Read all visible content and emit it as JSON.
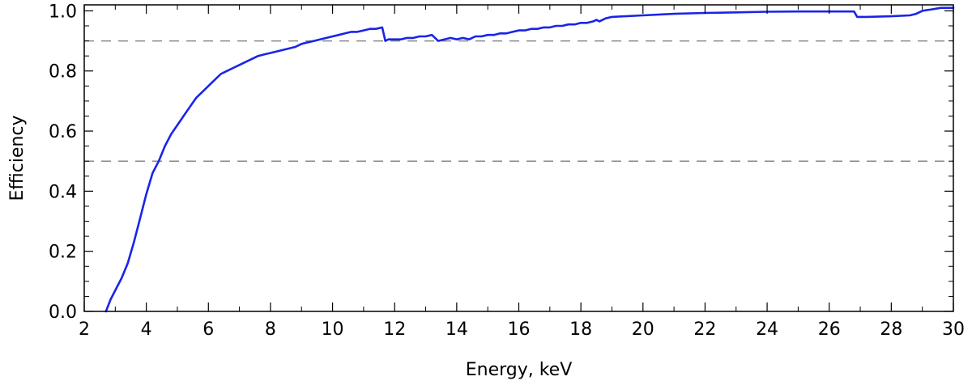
{
  "chart_data": {
    "type": "line",
    "title": "",
    "xlabel": "Energy, keV",
    "ylabel": "Efficiency",
    "xlim": [
      2,
      30
    ],
    "ylim": [
      0,
      1.02
    ],
    "xticks": [
      2,
      4,
      6,
      8,
      10,
      12,
      14,
      16,
      18,
      20,
      22,
      24,
      26,
      28,
      30
    ],
    "xtick_labels": [
      "2",
      "4",
      "6",
      "8",
      "10",
      "12",
      "14",
      "16",
      "18",
      "20",
      "22",
      "24",
      "26",
      "28",
      "30"
    ],
    "yticks": [
      0.0,
      0.2,
      0.4,
      0.6,
      0.8,
      1.0
    ],
    "ytick_labels": [
      "0.0",
      "0.2",
      "0.4",
      "0.6",
      "0.8",
      "1.0"
    ],
    "grid": false,
    "reference_lines": [
      {
        "y": 0.9,
        "style": "dashed",
        "color": "#888888"
      },
      {
        "y": 0.5,
        "style": "dashed",
        "color": "#888888"
      }
    ],
    "series": [
      {
        "color": "#1a24e8",
        "x": [
          2.7,
          2.85,
          3.0,
          3.2,
          3.4,
          3.6,
          3.8,
          4.0,
          4.2,
          4.4,
          4.6,
          4.8,
          5.0,
          5.2,
          5.4,
          5.6,
          5.8,
          6.0,
          6.2,
          6.4,
          6.6,
          6.8,
          7.0,
          7.2,
          7.4,
          7.6,
          7.8,
          8.0,
          8.2,
          8.4,
          8.6,
          8.8,
          9.0,
          9.2,
          9.4,
          9.6,
          9.8,
          10.0,
          10.2,
          10.4,
          10.6,
          10.8,
          11.0,
          11.2,
          11.4,
          11.6,
          11.7,
          11.8,
          12.0,
          12.2,
          12.4,
          12.6,
          12.8,
          13.0,
          13.2,
          13.4,
          13.6,
          13.8,
          14.0,
          14.2,
          14.4,
          14.6,
          14.8,
          15.0,
          15.2,
          15.4,
          15.6,
          15.8,
          16.0,
          16.2,
          16.4,
          16.6,
          16.8,
          17.0,
          17.2,
          17.4,
          17.6,
          17.8,
          18.0,
          18.2,
          18.4,
          18.5,
          18.6,
          18.8,
          19.0,
          20.0,
          21.0,
          22.0,
          23.0,
          24.0,
          25.0,
          26.0,
          26.8,
          26.9,
          27.2,
          28.0,
          28.6,
          28.8,
          29.0,
          29.3,
          29.6,
          30.0
        ],
        "y": [
          0.0,
          0.04,
          0.07,
          0.11,
          0.16,
          0.23,
          0.31,
          0.39,
          0.46,
          0.5,
          0.55,
          0.59,
          0.62,
          0.65,
          0.68,
          0.71,
          0.73,
          0.75,
          0.77,
          0.79,
          0.8,
          0.81,
          0.82,
          0.83,
          0.84,
          0.85,
          0.855,
          0.86,
          0.865,
          0.87,
          0.875,
          0.88,
          0.89,
          0.895,
          0.9,
          0.905,
          0.91,
          0.915,
          0.92,
          0.925,
          0.93,
          0.93,
          0.935,
          0.94,
          0.94,
          0.945,
          0.9,
          0.905,
          0.905,
          0.905,
          0.91,
          0.91,
          0.915,
          0.915,
          0.92,
          0.9,
          0.905,
          0.91,
          0.905,
          0.91,
          0.905,
          0.915,
          0.915,
          0.92,
          0.92,
          0.925,
          0.925,
          0.93,
          0.935,
          0.935,
          0.94,
          0.94,
          0.945,
          0.945,
          0.95,
          0.95,
          0.955,
          0.955,
          0.96,
          0.96,
          0.965,
          0.97,
          0.965,
          0.975,
          0.98,
          0.985,
          0.99,
          0.993,
          0.995,
          0.997,
          0.998,
          0.998,
          0.998,
          0.98,
          0.98,
          0.982,
          0.985,
          0.99,
          1.0,
          1.005,
          1.01,
          1.01
        ]
      }
    ]
  }
}
